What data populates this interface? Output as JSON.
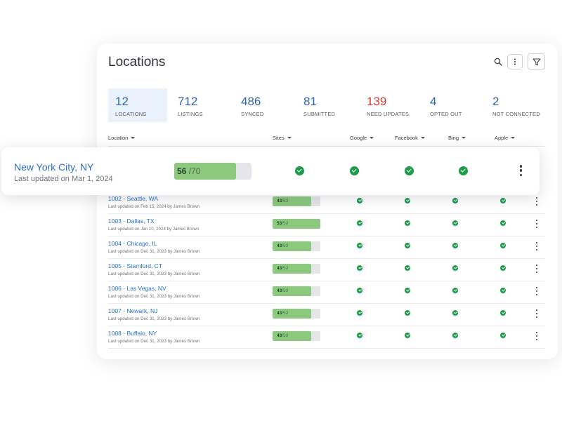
{
  "page": {
    "title": "Locations"
  },
  "toolbar": {
    "search_icon": "search-icon",
    "more_icon": "more-vertical-icon",
    "filter_icon": "filter-icon"
  },
  "stats": [
    {
      "value": "12",
      "label": "LOCATIONS",
      "active": true
    },
    {
      "value": "712",
      "label": "LISTINGS"
    },
    {
      "value": "486",
      "label": "SYNCED"
    },
    {
      "value": "81",
      "label": "SUBMITTED"
    },
    {
      "value": "139",
      "label": "NEED UPDATES",
      "color": "#d63b2f"
    },
    {
      "value": "4",
      "label": "OPTED OUT"
    },
    {
      "value": "2",
      "label": "NOT CONNECTED"
    }
  ],
  "columns": [
    "Location",
    "Sites",
    "Google",
    "Facebook",
    "Bing",
    "Apple"
  ],
  "highlighted": {
    "name": "New York City, NY",
    "updated": "Last updated on Mar 1, 2024",
    "sites_synced": "56",
    "sites_total": "/70"
  },
  "rows": [
    {
      "name": "1002 - Seattle, WA",
      "updated": "Last updated on Feb 15, 2024 by James Brown",
      "synced": "43",
      "total": "/53"
    },
    {
      "name": "1003 - Dallas, TX",
      "updated": "Last updated on Jan 10, 2024 by James Brown",
      "synced": "53",
      "total": "/53"
    },
    {
      "name": "1004 - Chicago, IL",
      "updated": "Last updated on Dec 31, 2023 by James Brown",
      "synced": "43",
      "total": "/53"
    },
    {
      "name": "1005 - Stamford, CT",
      "updated": "Last updated on Dec 31, 2023 by James Brown",
      "synced": "43",
      "total": "/53"
    },
    {
      "name": "1006 - Las Vegas, NV",
      "updated": "Last updated on Dec 31, 2023 by James Brown",
      "synced": "43",
      "total": "/53"
    },
    {
      "name": "1007 - Newark, NJ",
      "updated": "Last updated on Dec 31, 2023 by James Brown",
      "synced": "43",
      "total": "/53"
    },
    {
      "name": "1008 - Buffalo, NY",
      "updated": "Last updated on Dec 31, 2023 by James Brown",
      "synced": "43",
      "total": "/53"
    }
  ],
  "colors": {
    "accent": "#2a6fc4",
    "alert": "#d63b2f",
    "success": "#1f9a4b",
    "bar_fill": "#8cc97e"
  },
  "status_icon": "check-circle-icon",
  "row_menu_icon": "more-vertical-icon"
}
